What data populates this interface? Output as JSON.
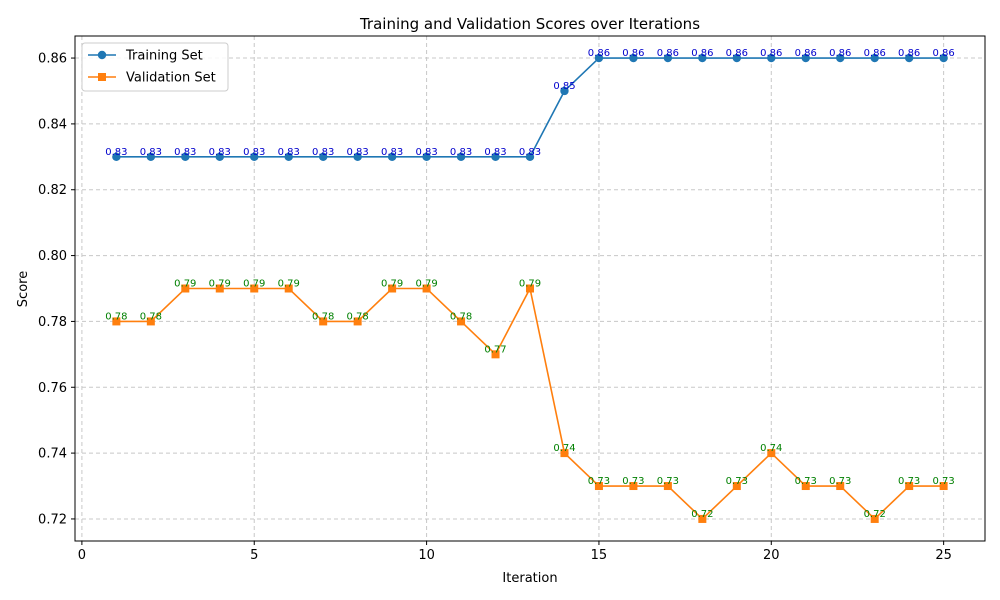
{
  "chart_data": {
    "type": "line",
    "title": "Training and Validation Scores over Iterations",
    "xlabel": "Iteration",
    "ylabel": "Score",
    "xlim": [
      -0.2,
      26.2
    ],
    "ylim": [
      0.7133,
      0.8667
    ],
    "xticks": [
      0,
      5,
      10,
      15,
      20,
      25
    ],
    "yticks": [
      0.72,
      0.74,
      0.76,
      0.78,
      0.8,
      0.82,
      0.84,
      0.86
    ],
    "ytick_labels": [
      "0.72",
      "0.74",
      "0.76",
      "0.78",
      "0.80",
      "0.82",
      "0.84",
      "0.86"
    ],
    "grid": true,
    "legend_position": "top-left",
    "x": [
      1,
      2,
      3,
      4,
      5,
      6,
      7,
      8,
      9,
      10,
      11,
      12,
      13,
      14,
      15,
      16,
      17,
      18,
      19,
      20,
      21,
      22,
      23,
      24,
      25
    ],
    "series": [
      {
        "name": "Training Set",
        "color": "#1f77b4",
        "label_color": "#0000cc",
        "marker": "circle",
        "values": [
          0.83,
          0.83,
          0.83,
          0.83,
          0.83,
          0.83,
          0.83,
          0.83,
          0.83,
          0.83,
          0.83,
          0.83,
          0.83,
          0.85,
          0.86,
          0.86,
          0.86,
          0.86,
          0.86,
          0.86,
          0.86,
          0.86,
          0.86,
          0.86,
          0.86
        ],
        "labels": [
          "0.83",
          "0.83",
          "0.83",
          "0.83",
          "0.83",
          "0.83",
          "0.83",
          "0.83",
          "0.83",
          "0.83",
          "0.83",
          "0.83",
          "0.83",
          "0.85",
          "0.86",
          "0.86",
          "0.86",
          "0.86",
          "0.86",
          "0.86",
          "0.86",
          "0.86",
          "0.86",
          "0.86",
          "0.86"
        ]
      },
      {
        "name": "Validation Set",
        "color": "#ff7f0e",
        "label_color": "#008000",
        "marker": "square",
        "values": [
          0.78,
          0.78,
          0.79,
          0.79,
          0.79,
          0.79,
          0.78,
          0.78,
          0.79,
          0.79,
          0.78,
          0.77,
          0.79,
          0.74,
          0.73,
          0.73,
          0.73,
          0.72,
          0.73,
          0.74,
          0.73,
          0.73,
          0.72,
          0.73,
          0.73
        ],
        "labels": [
          "0.78",
          "0.78",
          "0.79",
          "0.79",
          "0.79",
          "0.79",
          "0.78",
          "0.78",
          "0.79",
          "0.79",
          "0.78",
          "0.77",
          "0.79",
          "0.74",
          "0.73",
          "0.73",
          "0.73",
          "0.72",
          "0.73",
          "0.74",
          "0.73",
          "0.73",
          "0.72",
          "0.73",
          "0.73"
        ]
      }
    ]
  }
}
